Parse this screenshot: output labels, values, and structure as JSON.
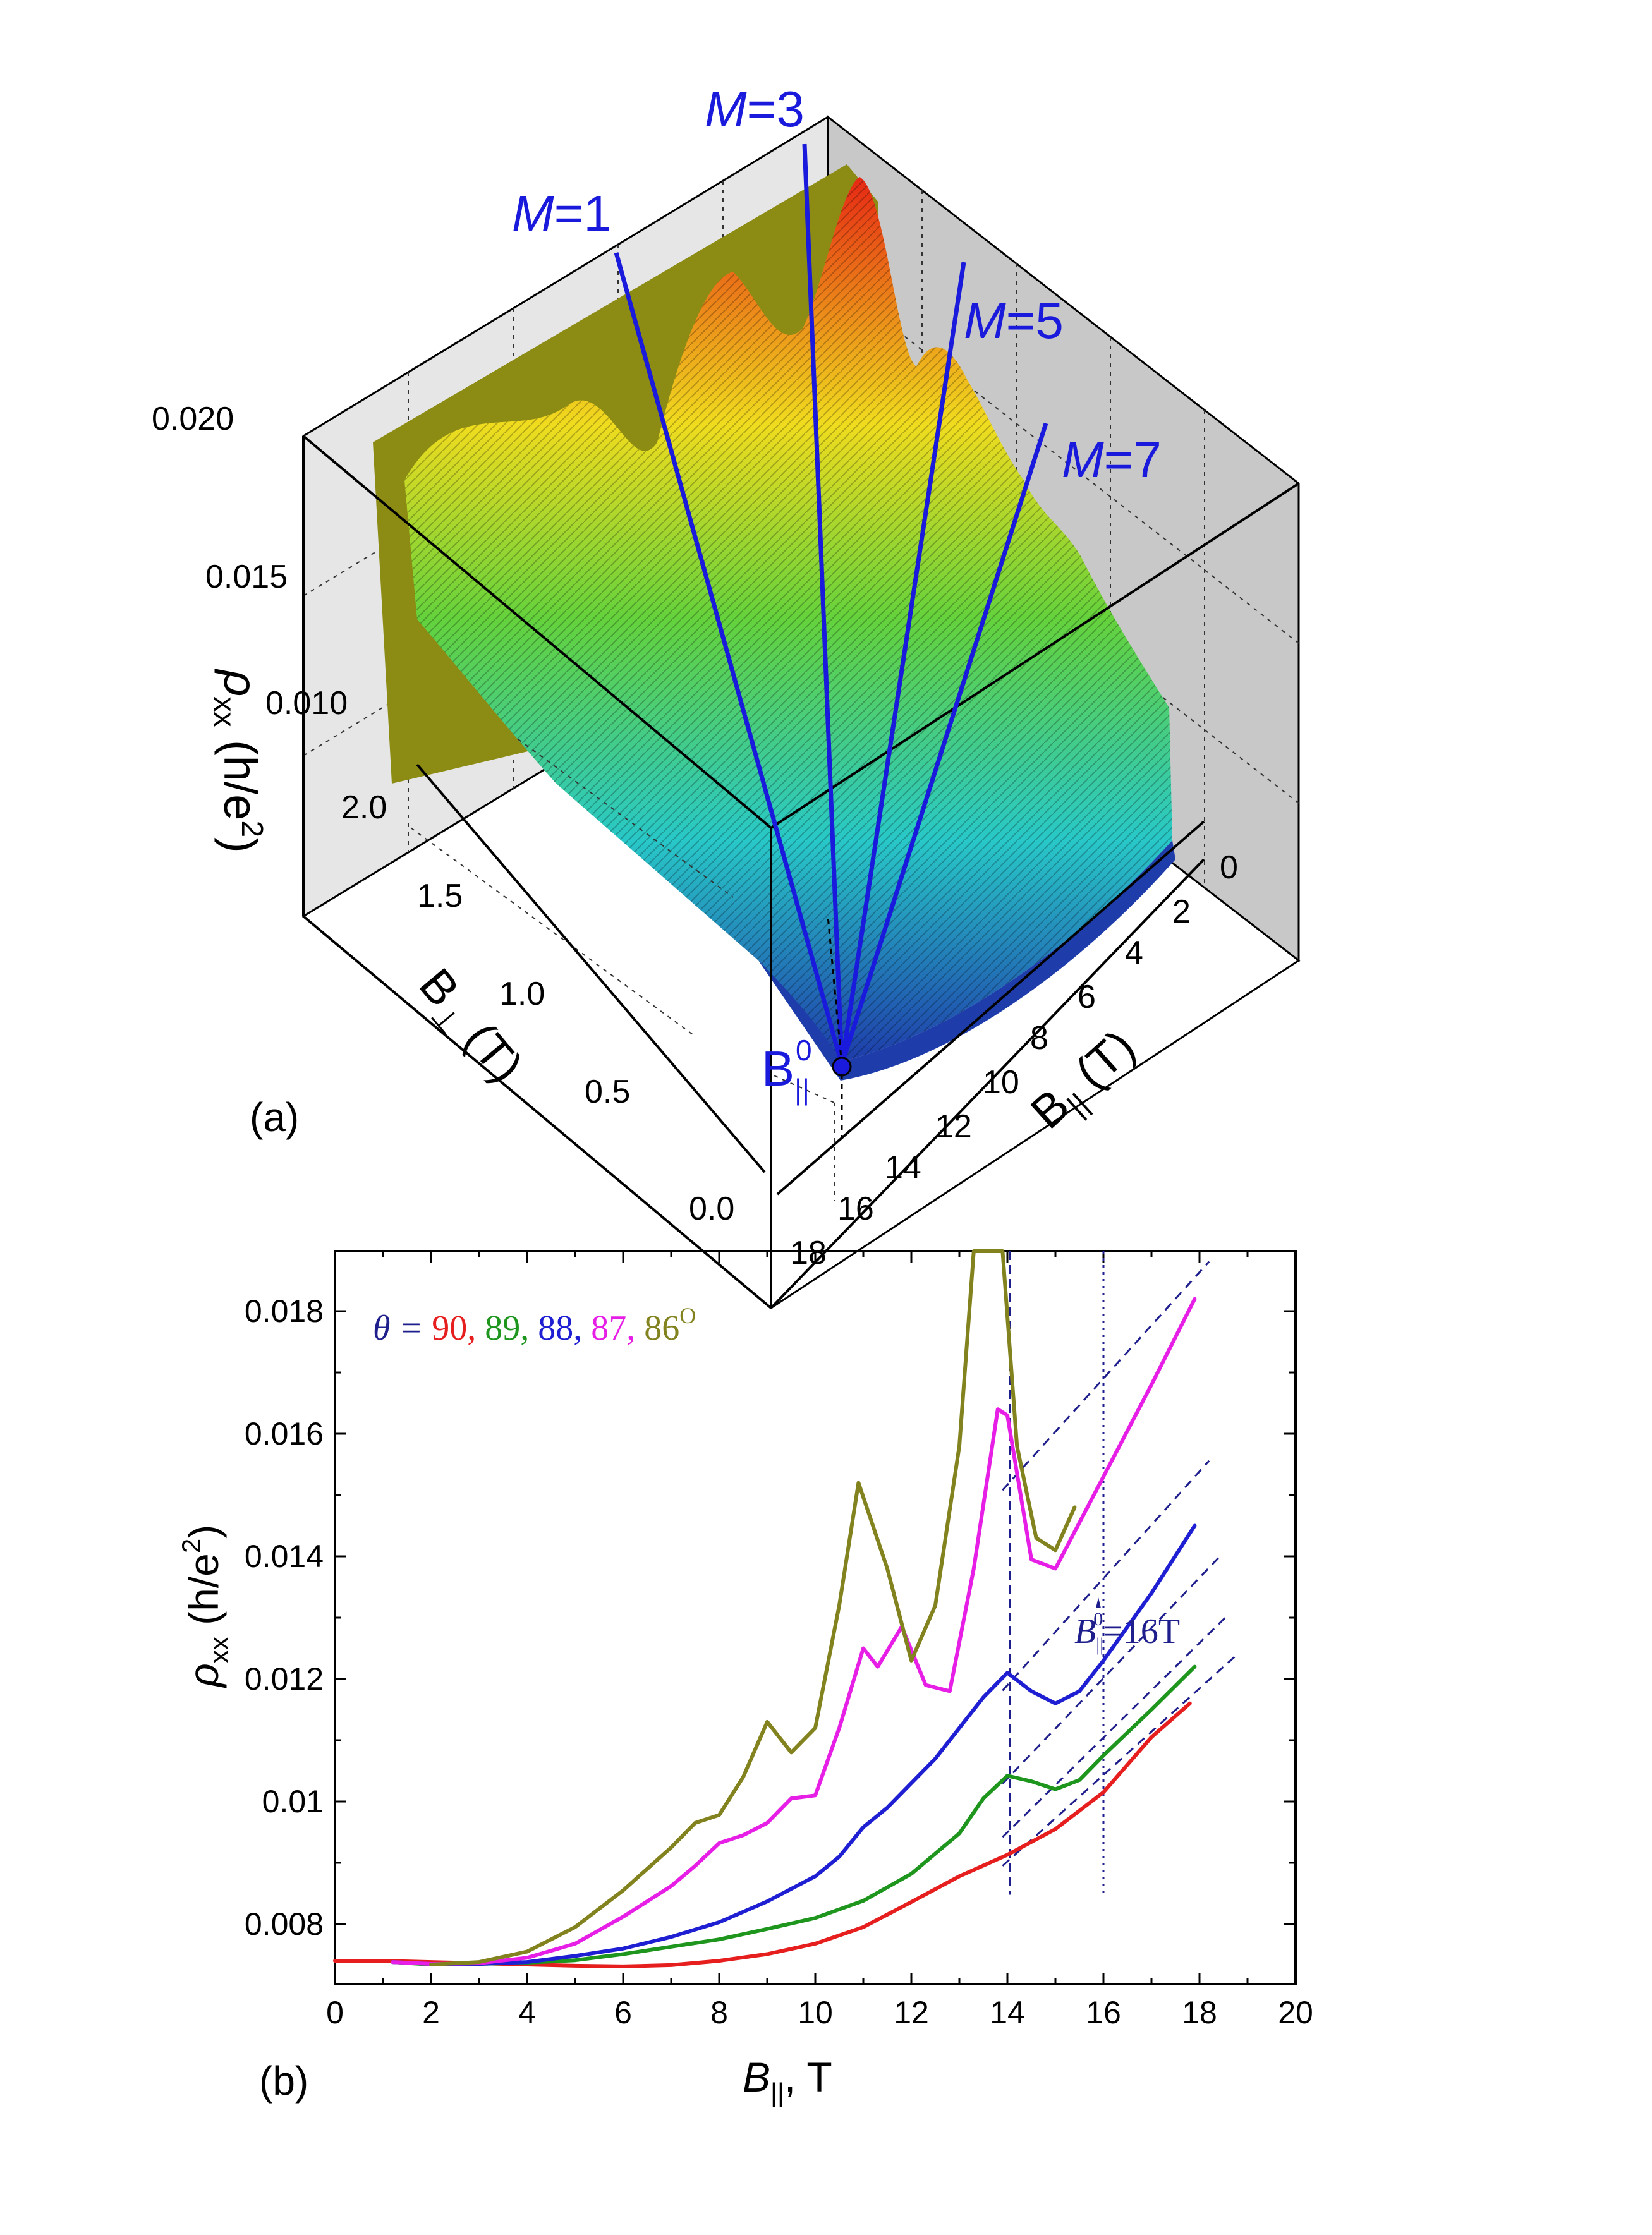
{
  "panel_a": {
    "panel_label": "(a)",
    "z_axis": {
      "symbol": "ρ",
      "subscript": "xx",
      "unit_open": " (h/e",
      "unit_sup": "2",
      "unit_close": ")",
      "ticks": [
        "0.020",
        "0.015",
        "0.010"
      ]
    },
    "y_axis": {
      "symbol": "B",
      "subscript": "⊥",
      "unit": " (T)",
      "ticks": [
        "2.0",
        "1.5",
        "1.0",
        "0.5",
        "0.0"
      ]
    },
    "x_axis": {
      "symbol": "B",
      "subscript": "||",
      "unit": " (T)",
      "ticks": [
        "0",
        "2",
        "4",
        "6",
        "8",
        "10",
        "12",
        "14",
        "16",
        "18"
      ]
    },
    "lines": [
      {
        "label_italic": "M",
        "label_rest": "=1"
      },
      {
        "label_italic": "M",
        "label_rest": "=3"
      },
      {
        "label_italic": "M",
        "label_rest": "=5"
      },
      {
        "label_italic": "M",
        "label_rest": "=7"
      }
    ],
    "origin_label": {
      "symbol": "B",
      "subscript": "||",
      "superscript": "0"
    },
    "colors": {
      "lines": "#1a1adc",
      "low": "#1e3caa",
      "mid": "#28c8c8",
      "high": "#e62814",
      "cut": "#8c8c14"
    }
  },
  "panel_b": {
    "panel_label": "(b)",
    "xlabel": {
      "symbol": "B",
      "subscript": "||",
      "rest": ", T"
    },
    "ylabel": {
      "symbol": "ρ",
      "subscript": "xx",
      "rest_open": " (h/e",
      "rest_sup": "2",
      "rest_close": ")"
    },
    "legend": {
      "prefix": "θ = ",
      "items": [
        {
          "text": "90",
          "sep": ", ",
          "color": "#e61e1e"
        },
        {
          "text": "89",
          "sep": ", ",
          "color": "#1e961e"
        },
        {
          "text": "88",
          "sep": ", ",
          "color": "#1e1ed2"
        },
        {
          "text": "87",
          "sep": ", ",
          "color": "#e61ee6"
        },
        {
          "text": "86",
          "sep": "",
          "color": "#82821e"
        }
      ],
      "unit_sup": "O"
    },
    "annotation": {
      "symbol": "B",
      "subscript": "||",
      "superscript": "0",
      "rest": "=16T"
    }
  },
  "chart_data": {
    "type": "line",
    "title": "",
    "xlabel": "B||, T",
    "ylabel": "ρxx (h/e²)",
    "x_ticks": [
      0,
      2,
      4,
      6,
      8,
      10,
      12,
      14,
      16,
      18,
      20
    ],
    "y_ticks": [
      0.008,
      0.01,
      0.012,
      0.014,
      0.016,
      0.018
    ],
    "y_tick_labels": [
      "0.008",
      "0.01",
      "0.012",
      "0.014",
      "0.016",
      "0.018"
    ],
    "xlim": [
      0,
      20
    ],
    "ylim": [
      0.00702,
      0.01898
    ],
    "series": [
      {
        "name": "90",
        "color": "#e61e1e",
        "x": [
          0,
          1,
          2,
          3,
          4,
          5,
          6,
          7,
          8,
          9,
          10,
          11,
          12,
          13,
          14,
          15,
          16,
          17,
          17.8
        ],
        "y": [
          0.0074,
          0.0074,
          0.00738,
          0.00736,
          0.00734,
          0.00732,
          0.00731,
          0.00733,
          0.0074,
          0.00751,
          0.00768,
          0.00795,
          0.00836,
          0.00878,
          0.00913,
          0.00955,
          0.01015,
          0.01105,
          0.0116
        ]
      },
      {
        "name": "89",
        "color": "#1e961e",
        "x": [
          1.2,
          2,
          3,
          4,
          5,
          6,
          7,
          8,
          9,
          10,
          11,
          12,
          13,
          13.5,
          14,
          14.5,
          15,
          15.5,
          16,
          17,
          17.9
        ],
        "y": [
          0.00738,
          0.00734,
          0.00735,
          0.00737,
          0.00741,
          0.00751,
          0.00763,
          0.00775,
          0.00792,
          0.0081,
          0.00838,
          0.00882,
          0.00948,
          0.01005,
          0.01042,
          0.01033,
          0.0102,
          0.01035,
          0.01075,
          0.0115,
          0.0122
        ]
      },
      {
        "name": "88",
        "color": "#1e1ed2",
        "x": [
          1.2,
          2,
          3,
          4,
          5,
          6,
          7,
          8,
          9,
          10,
          10.5,
          11,
          11.5,
          12,
          12.5,
          13,
          13.5,
          14,
          14.5,
          15,
          15.5,
          16,
          17,
          17.9
        ],
        "y": [
          0.00738,
          0.00735,
          0.00735,
          0.00738,
          0.00748,
          0.0076,
          0.00779,
          0.00803,
          0.00837,
          0.00878,
          0.0091,
          0.00958,
          0.0099,
          0.0103,
          0.0107,
          0.0112,
          0.0117,
          0.0121,
          0.0118,
          0.0116,
          0.0118,
          0.0123,
          0.0134,
          0.0145
        ]
      },
      {
        "name": "87",
        "color": "#e61ee6",
        "x": [
          1.2,
          2,
          3,
          4,
          5,
          6,
          7,
          7.5,
          8,
          8.5,
          9,
          9.5,
          10,
          10.5,
          11,
          11.3,
          11.8,
          12.3,
          12.8,
          13.3,
          13.8,
          14,
          14.5,
          15,
          16,
          17,
          17.9
        ],
        "y": [
          0.00738,
          0.00735,
          0.00736,
          0.00745,
          0.00768,
          0.00812,
          0.00862,
          0.00895,
          0.00932,
          0.00945,
          0.00965,
          0.01005,
          0.0101,
          0.0112,
          0.0125,
          0.0122,
          0.01285,
          0.0119,
          0.0118,
          0.0138,
          0.0164,
          0.0163,
          0.01395,
          0.0138,
          0.0153,
          0.0168,
          0.0182
        ]
      },
      {
        "name": "86",
        "color": "#82821e",
        "x": [
          2,
          3,
          4,
          5,
          6,
          7,
          7.5,
          8,
          8.5,
          9,
          9.5,
          10,
          10.5,
          10.9,
          11.5,
          12,
          12.5,
          13,
          13.3,
          13.9,
          14.2,
          14.6,
          15,
          15.4
        ],
        "y": [
          0.00734,
          0.00738,
          0.00755,
          0.00795,
          0.00855,
          0.00925,
          0.00965,
          0.00978,
          0.0104,
          0.0113,
          0.0108,
          0.0112,
          0.0132,
          0.0152,
          0.0138,
          0.0123,
          0.0132,
          0.0158,
          0.019,
          0.019,
          0.0158,
          0.0143,
          0.0141,
          0.0148
        ]
      }
    ],
    "guides": [
      {
        "kind": "vertical",
        "x": 14.05,
        "style": "dashed"
      },
      {
        "kind": "vertical",
        "x": 16,
        "style": "dotted"
      },
      {
        "kind": "slope",
        "style": "dashed",
        "x": [
          13.9,
          18.8
        ],
        "y": [
          0.00895,
          0.01241
        ]
      },
      {
        "kind": "slope",
        "style": "dashed",
        "x": [
          13.9,
          18.6
        ],
        "y": [
          0.00942,
          0.01305
        ]
      },
      {
        "kind": "slope",
        "style": "dashed",
        "x": [
          13.9,
          18.4
        ],
        "y": [
          0.01029,
          0.01398
        ]
      },
      {
        "kind": "slope",
        "style": "dashed",
        "x": [
          13.9,
          18.2
        ],
        "y": [
          0.01181,
          0.01556
        ]
      },
      {
        "kind": "slope",
        "style": "dashed",
        "x": [
          13.9,
          18.2
        ],
        "y": [
          0.01508,
          0.01881
        ]
      }
    ]
  }
}
